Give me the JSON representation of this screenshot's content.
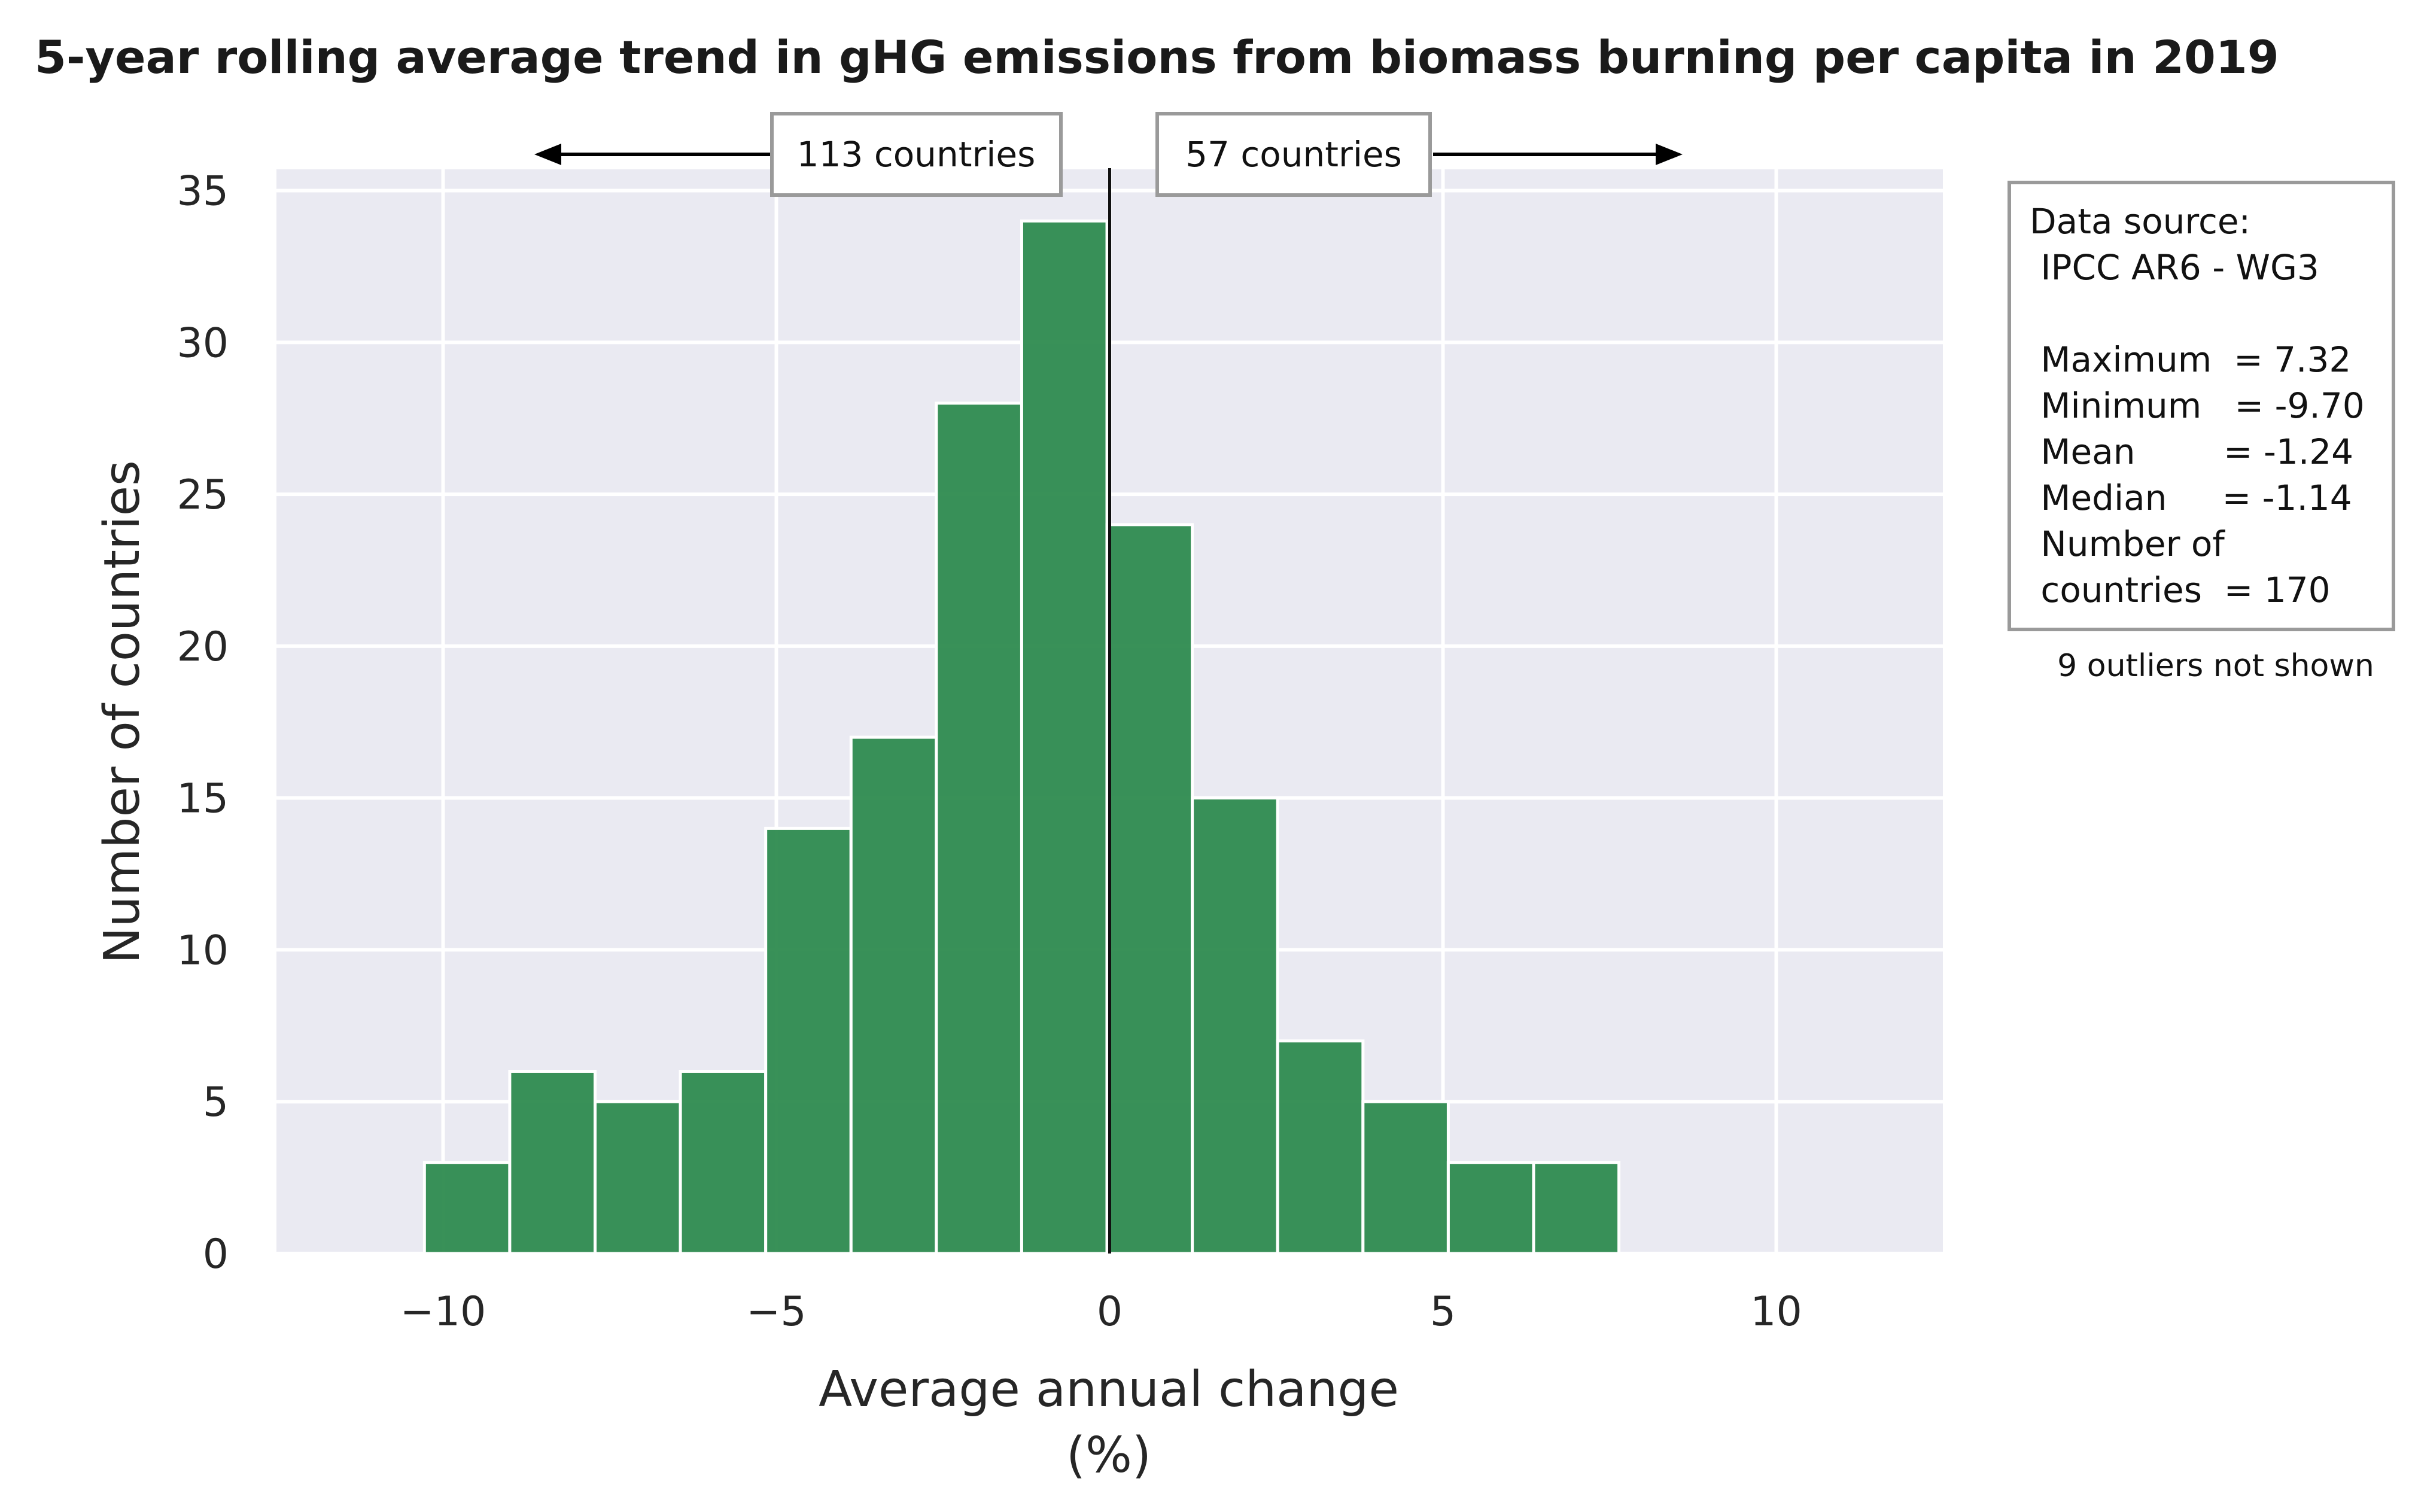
{
  "chart_data": {
    "type": "bar",
    "title": "5-year rolling average trend in gHG emissions from biomass burning per capita in 2019",
    "xlabel": "Average annual change",
    "xlabel_unit": "(%)",
    "ylabel": "Number of countries",
    "xlim": [
      -12.5,
      12.5
    ],
    "ylim": [
      0,
      35.7
    ],
    "xticks": [
      -10,
      -5,
      0,
      5,
      10
    ],
    "xtick_labels": [
      "−10",
      "−5",
      "0",
      "5",
      "10"
    ],
    "yticks": [
      0,
      5,
      10,
      15,
      20,
      25,
      30,
      35
    ],
    "ytick_labels": [
      "0",
      "5",
      "10",
      "15",
      "20",
      "25",
      "30",
      "35"
    ],
    "grid": true,
    "bar_color": "#2e8b4f",
    "background_color": "#eaeaf2",
    "bins": [
      {
        "x0": -10.28,
        "x1": -9.0,
        "count": 3
      },
      {
        "x0": -9.0,
        "x1": -7.72,
        "count": 6
      },
      {
        "x0": -7.72,
        "x1": -6.44,
        "count": 5
      },
      {
        "x0": -6.44,
        "x1": -5.16,
        "count": 6
      },
      {
        "x0": -5.16,
        "x1": -3.88,
        "count": 14
      },
      {
        "x0": -3.88,
        "x1": -2.6,
        "count": 17
      },
      {
        "x0": -2.6,
        "x1": -1.32,
        "count": 28
      },
      {
        "x0": -1.32,
        "x1": -0.04,
        "count": 34
      },
      {
        "x0": -0.04,
        "x1": 1.24,
        "count": 24
      },
      {
        "x0": 1.24,
        "x1": 2.52,
        "count": 15
      },
      {
        "x0": 2.52,
        "x1": 3.8,
        "count": 7
      },
      {
        "x0": 3.8,
        "x1": 5.08,
        "count": 5
      },
      {
        "x0": 5.08,
        "x1": 6.36,
        "count": 3
      },
      {
        "x0": 6.36,
        "x1": 7.64,
        "count": 3
      }
    ],
    "zero_line_x": 0,
    "annotations": {
      "left_count": "113 countries",
      "right_count": "57 countries"
    },
    "stats_box": {
      "lines": [
        "Data source:",
        " IPCC AR6 - WG3",
        "",
        " Maximum  = 7.32",
        " Minimum   = -9.70",
        " Mean        = -1.24",
        " Median     = -1.14",
        " Number of",
        " countries  = 170"
      ],
      "note": "9 outliers not shown"
    }
  }
}
